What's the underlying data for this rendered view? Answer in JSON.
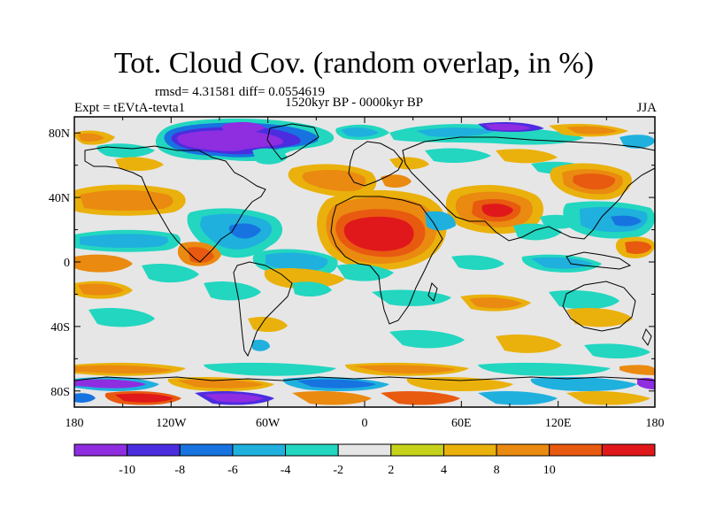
{
  "title": "Tot. Cloud Cov. (random overlap, in %)",
  "stats": "rmsd= 4.31581  diff= 0.0554619",
  "period": "1520kyr BP - 0000kyr BP",
  "experiment": "Expt = tEVtA-tevta1",
  "season": "JJA",
  "map": {
    "projection": "cylindrical-equidistant",
    "lon_range": [
      -180,
      180
    ],
    "lat_range": [
      -90,
      90
    ],
    "lat_ticks": [
      {
        "value": 80,
        "label": "80N"
      },
      {
        "value": 40,
        "label": "40N"
      },
      {
        "value": 0,
        "label": "0"
      },
      {
        "value": -40,
        "label": "40S"
      },
      {
        "value": -80,
        "label": "80S"
      }
    ],
    "lon_ticks": [
      {
        "value": -180,
        "label": "180"
      },
      {
        "value": -120,
        "label": "120W"
      },
      {
        "value": -60,
        "label": "60W"
      },
      {
        "value": 0,
        "label": "0"
      },
      {
        "value": 60,
        "label": "60E"
      },
      {
        "value": 120,
        "label": "120E"
      },
      {
        "value": 180,
        "label": "180"
      }
    ],
    "background_color": "#e6e6e6",
    "coastlines": true
  },
  "colorbar": {
    "colors": [
      "#8f2de0",
      "#4b2ddf",
      "#1773e0",
      "#1fb0de",
      "#22d6c0",
      "#e6e6e6",
      "#c6d21a",
      "#eab10c",
      "#ea8a10",
      "#e85a10",
      "#e0181b"
    ],
    "labels": [
      {
        "after_index": 0,
        "text": "-10"
      },
      {
        "after_index": 1,
        "text": "-8"
      },
      {
        "after_index": 2,
        "text": "-6"
      },
      {
        "after_index": 3,
        "text": "-4"
      },
      {
        "after_index": 4,
        "text": "-2"
      },
      {
        "after_index": 5,
        "text": "2"
      },
      {
        "after_index": 6,
        "text": "4"
      },
      {
        "after_index": 7,
        "text": "8"
      },
      {
        "after_index": 8,
        "text": "10"
      }
    ]
  }
}
